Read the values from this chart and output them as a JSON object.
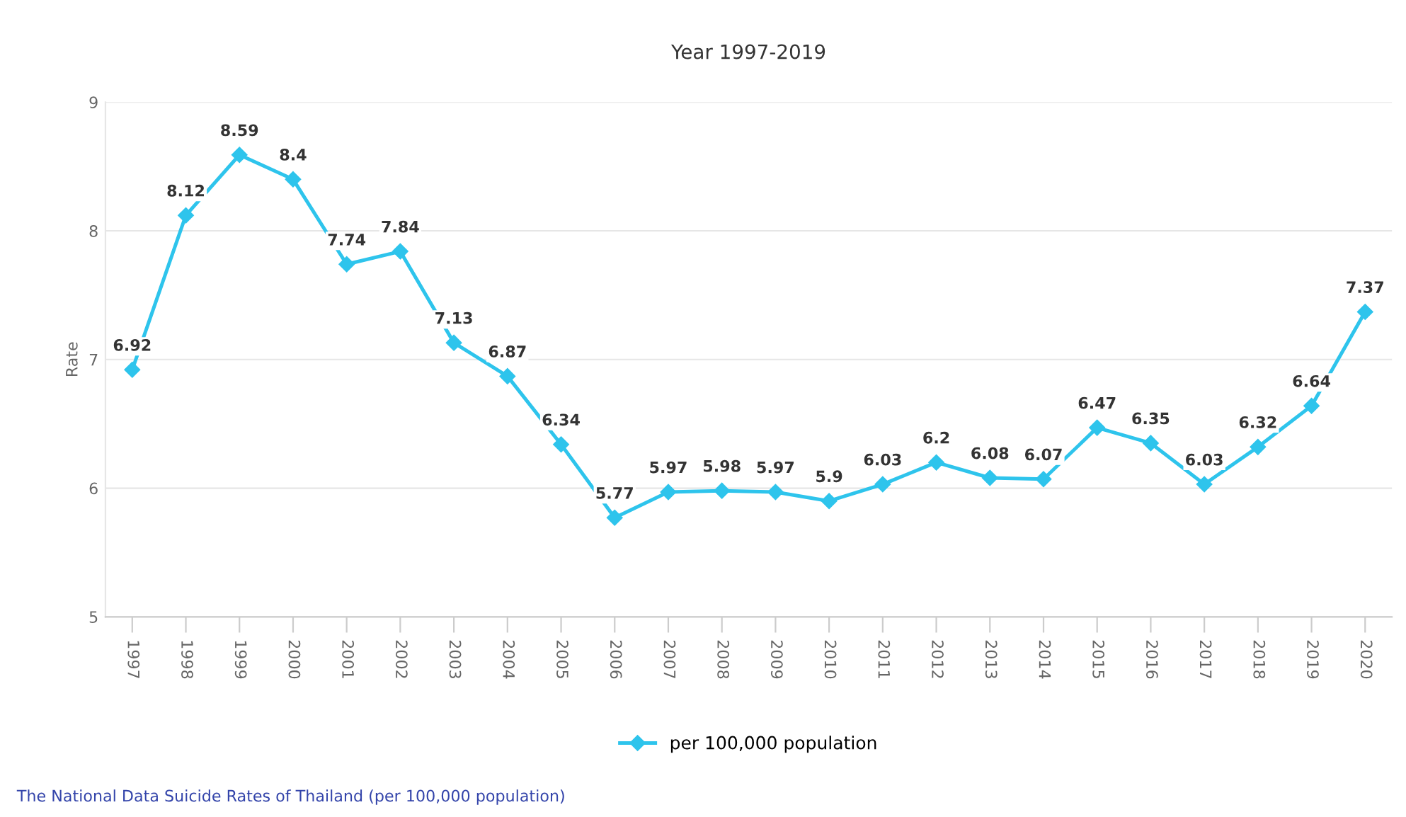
{
  "chart_data": {
    "type": "line",
    "title": "Year 1997-2019",
    "ylabel": "Rate",
    "categories": [
      "1997",
      "1998",
      "1999",
      "2000",
      "2001",
      "2002",
      "2003",
      "2004",
      "2005",
      "2006",
      "2007",
      "2008",
      "2009",
      "2010",
      "2011",
      "2012",
      "2013",
      "2014",
      "2015",
      "2016",
      "2017",
      "2018",
      "2019",
      "2020"
    ],
    "series": [
      {
        "name": "per 100,000 population",
        "color": "#2ec4ec",
        "values": [
          6.92,
          8.12,
          8.59,
          8.4,
          7.74,
          7.84,
          7.13,
          6.87,
          6.34,
          5.77,
          5.97,
          5.98,
          5.97,
          5.9,
          6.03,
          6.2,
          6.08,
          6.07,
          6.47,
          6.35,
          6.03,
          6.32,
          6.64,
          7.37
        ]
      }
    ],
    "ylim": [
      5,
      9
    ],
    "yticks": [
      5,
      6,
      7,
      8,
      9
    ],
    "grid": "y",
    "legend": "bottom",
    "marker": "diamond",
    "line_style": "solid",
    "data_labels": true,
    "annotations": [
      "The National Data Suicide Rates of Thailand (per 100,000 population)"
    ]
  }
}
